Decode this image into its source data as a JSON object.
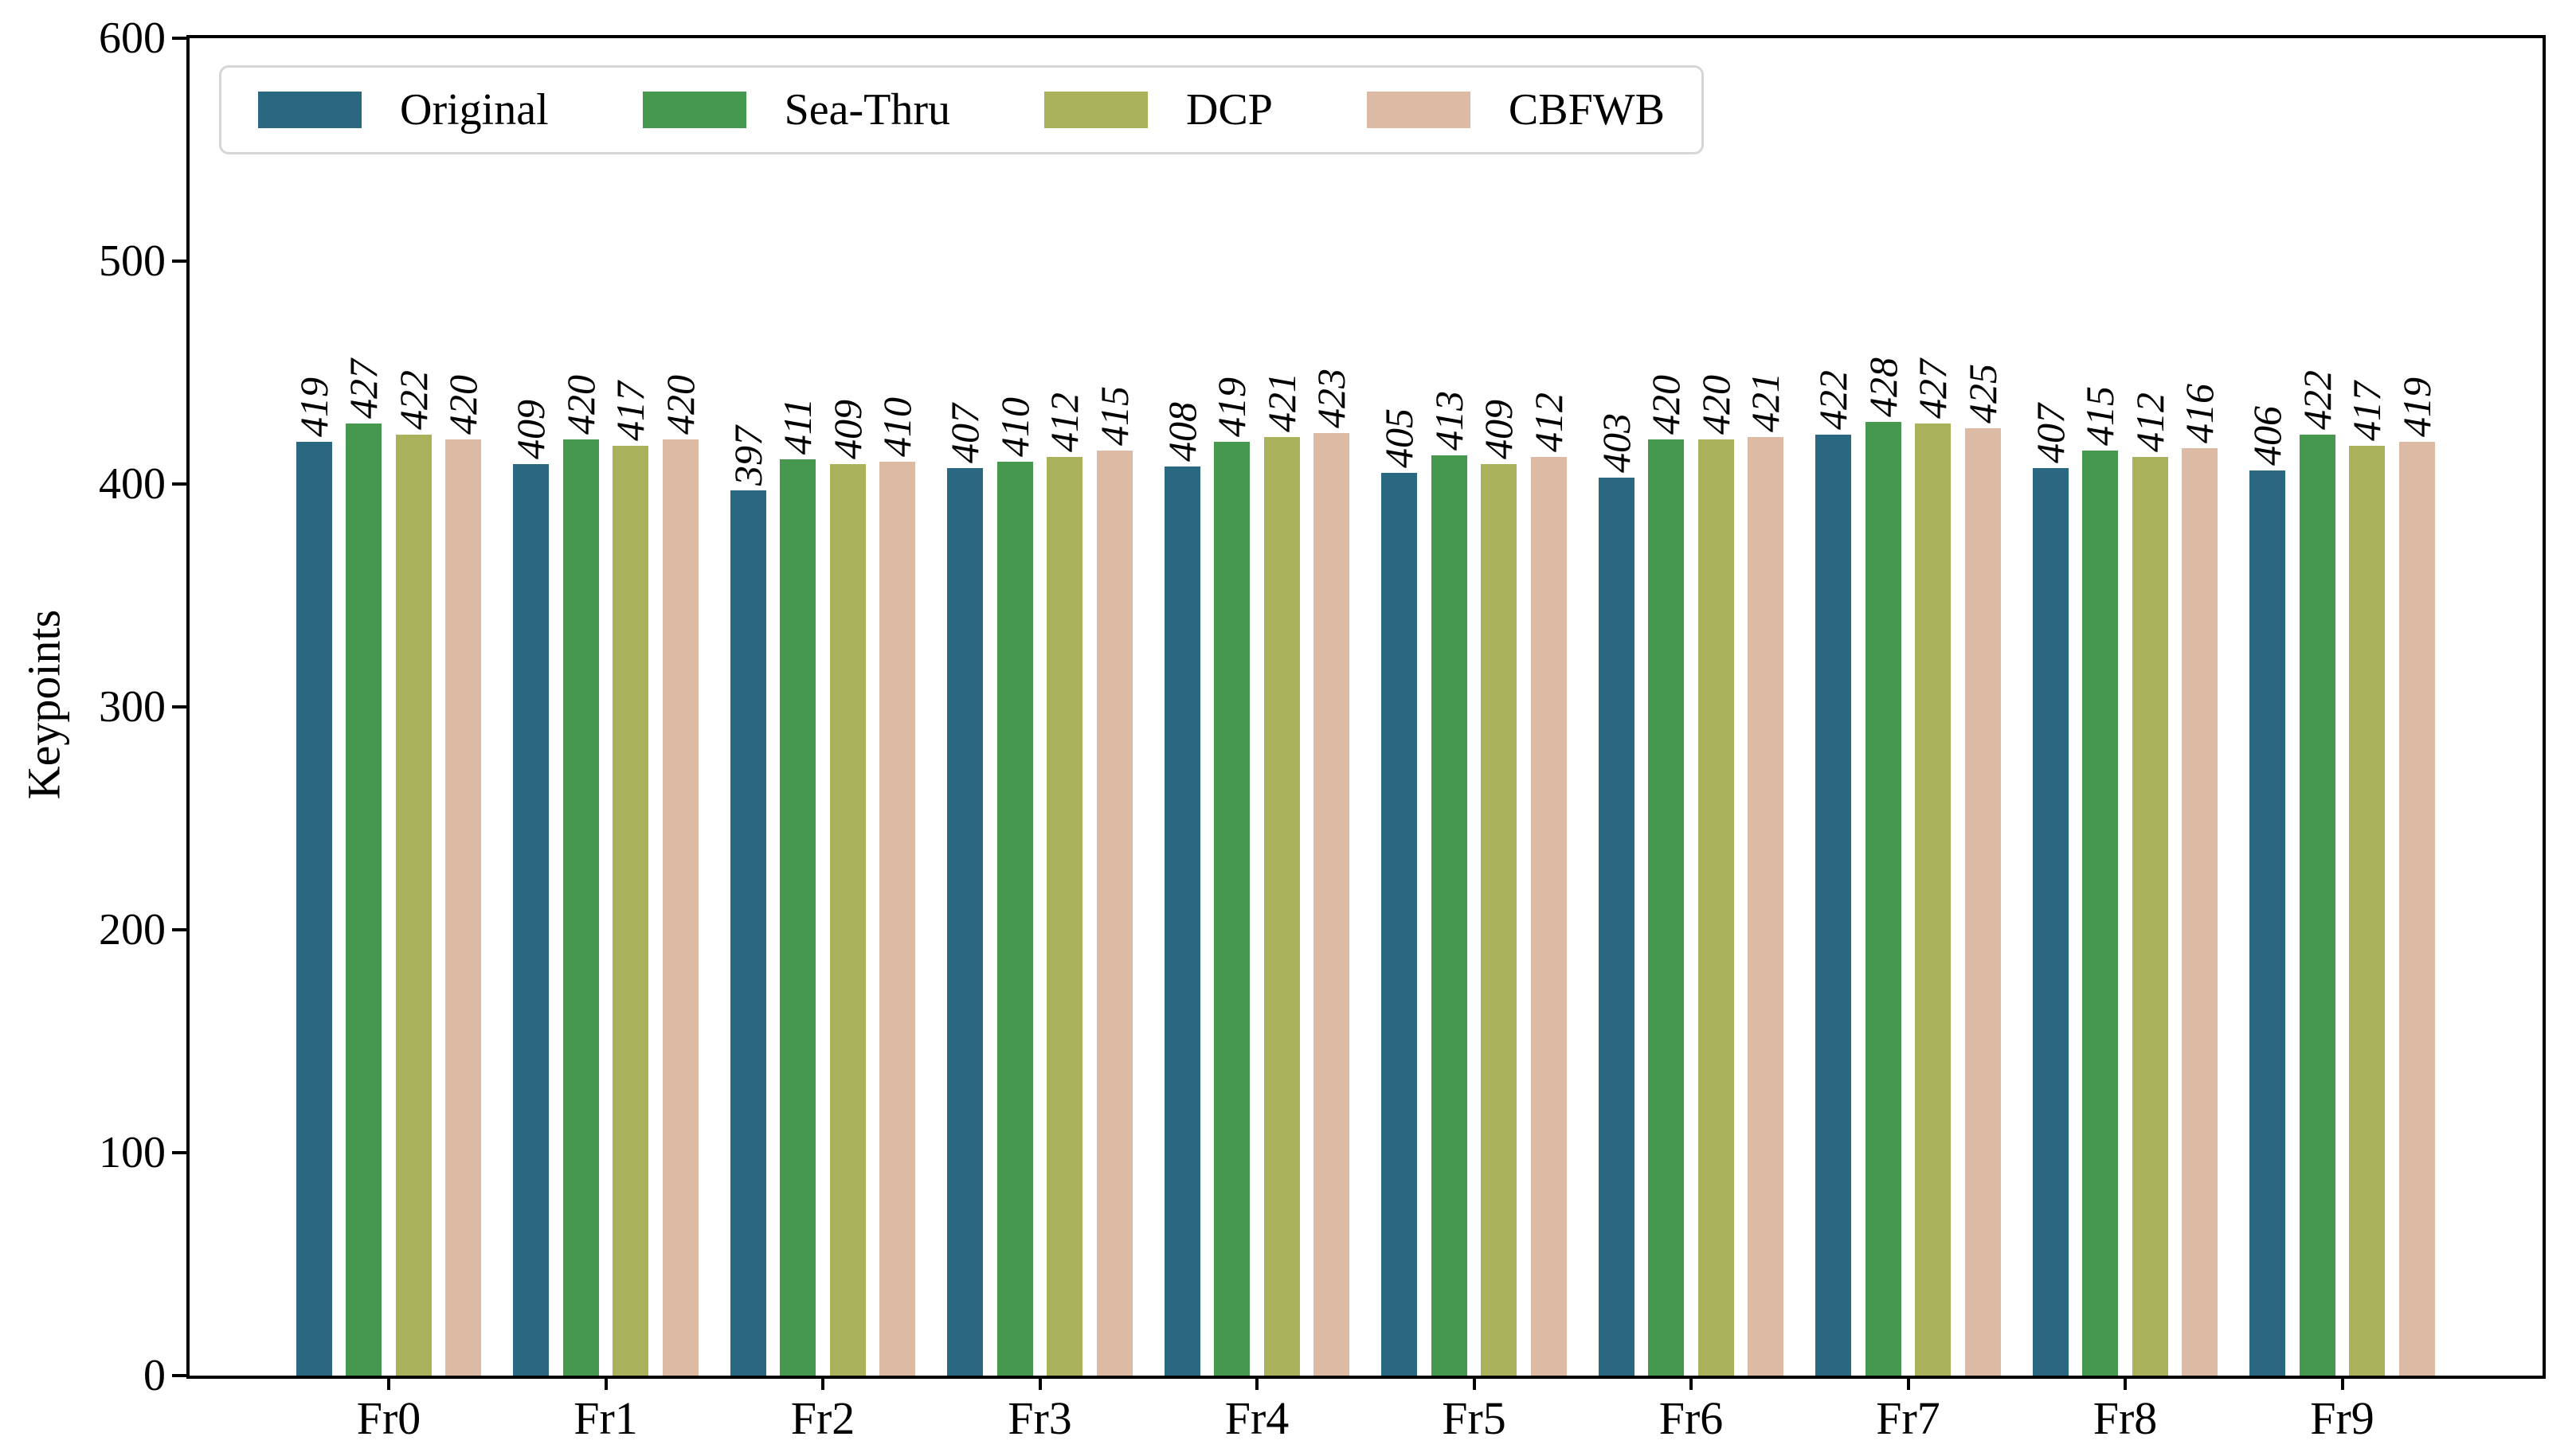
{
  "chart_data": {
    "type": "bar",
    "title": "",
    "xlabel": "",
    "ylabel": "Keypoints",
    "ylim": [
      0,
      600
    ],
    "yticks": [
      0,
      100,
      200,
      300,
      400,
      500,
      600
    ],
    "grid": false,
    "legend_position": "upper left",
    "bar_value_labels": true,
    "bar_value_label_rotation": 90,
    "categories": [
      "Fr0",
      "Fr1",
      "Fr2",
      "Fr3",
      "Fr4",
      "Fr5",
      "Fr6",
      "Fr7",
      "Fr8",
      "Fr9"
    ],
    "series": [
      {
        "name": "Original",
        "color": "#2a6881",
        "values": [
          419,
          409,
          397,
          407,
          408,
          405,
          403,
          422,
          407,
          406
        ]
      },
      {
        "name": "Sea-Thru",
        "color": "#46984e",
        "values": [
          427,
          420,
          411,
          410,
          419,
          413,
          420,
          428,
          415,
          422
        ]
      },
      {
        "name": "DCP",
        "color": "#a9b25b",
        "values": [
          422,
          417,
          409,
          412,
          421,
          409,
          420,
          427,
          412,
          417
        ]
      },
      {
        "name": "CBFWB",
        "color": "#ddbaa3",
        "values": [
          420,
          420,
          410,
          415,
          423,
          412,
          421,
          425,
          416,
          419
        ]
      }
    ]
  }
}
